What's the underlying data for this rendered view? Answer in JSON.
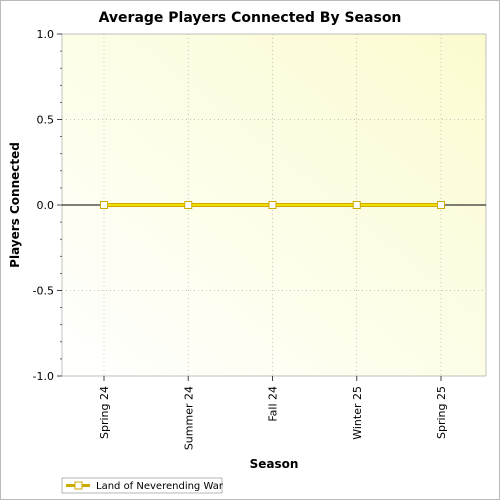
{
  "colors": {
    "series": "#ccaa00",
    "series_fill": "#ffee00",
    "plot_bg_start": "#ffffff",
    "plot_bg_end": "#fbfbd0",
    "grid": "#b0b0b0"
  },
  "chart_data": {
    "type": "line",
    "title": "Average Players Connected By Season",
    "xlabel": "Season",
    "ylabel": "Players Connected",
    "categories": [
      "Spring 24",
      "Summer 24",
      "Fall 24",
      "Winter 25",
      "Spring 25"
    ],
    "series": [
      {
        "name": "Land of Neverending War",
        "values": [
          0,
          0,
          0,
          0,
          0
        ]
      }
    ],
    "ylim": [
      -1.0,
      1.0
    ],
    "yticks": [
      "1.0",
      "0.5",
      "0.0",
      "-0.5",
      "-1.0"
    ],
    "ytick_values": [
      1.0,
      0.5,
      0.0,
      -0.5,
      -1.0
    ],
    "grid": true,
    "legend_position": "bottom-left"
  }
}
